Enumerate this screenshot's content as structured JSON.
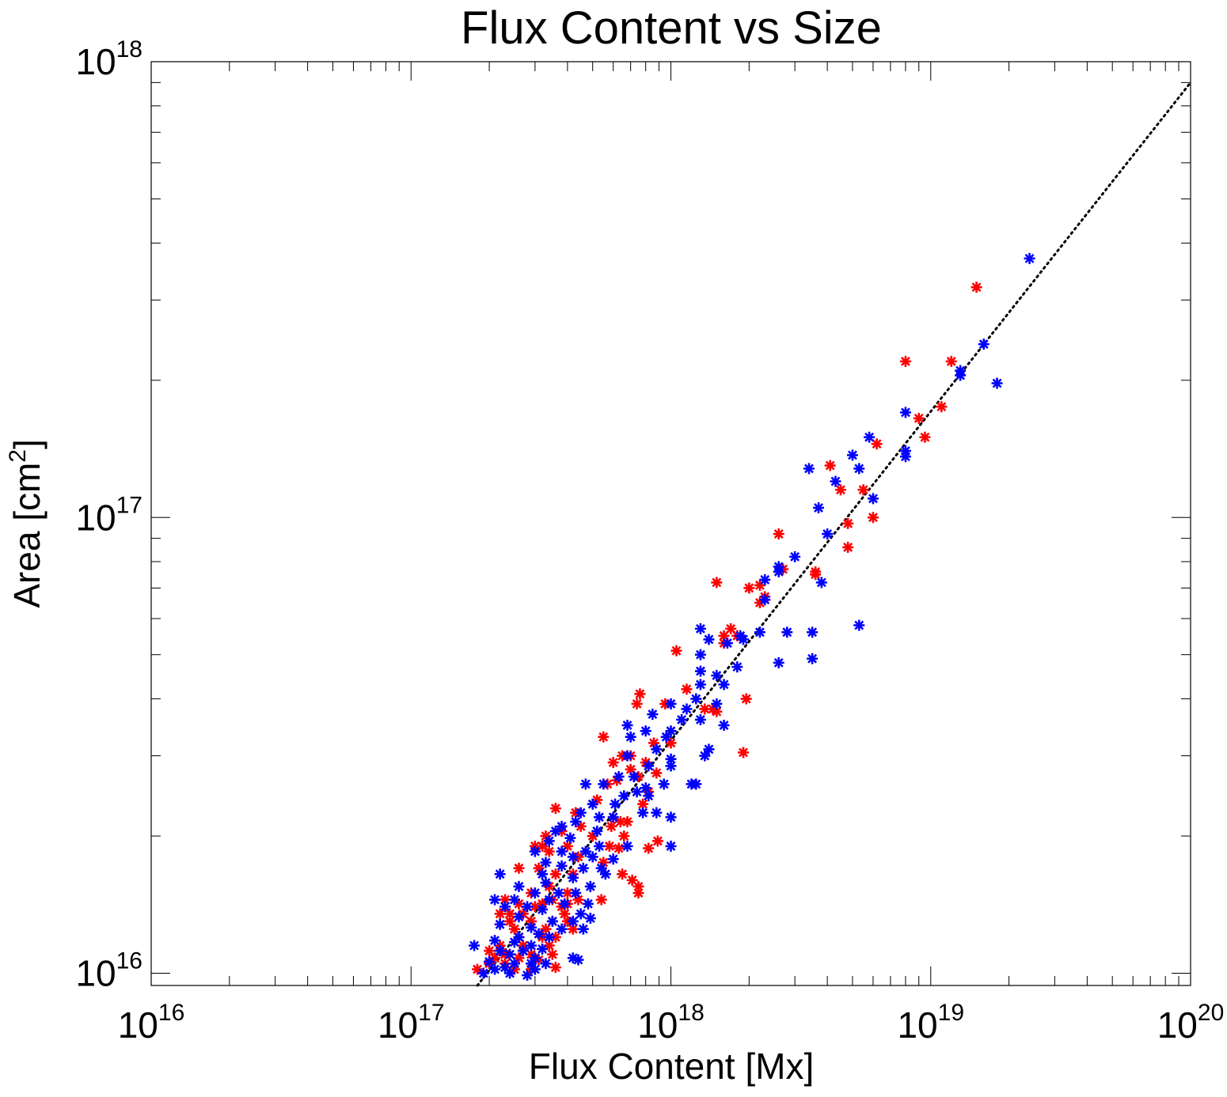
{
  "chart_data": {
    "type": "scatter",
    "title": "Flux Content vs Size",
    "xlabel": "Flux Content [Mx]",
    "ylabel_main": "Area [cm",
    "ylabel_sup": "2",
    "ylabel_tail": "]",
    "xscale": "log",
    "yscale": "log",
    "xlim": [
      1e+16,
      1e+20
    ],
    "ylim": [
      9400000000000000.0,
      1e+18
    ],
    "grid": false,
    "x_tick_labels": [
      {
        "base": "10",
        "exp": "16",
        "value": 1e+16
      },
      {
        "base": "10",
        "exp": "17",
        "value": 1e+17
      },
      {
        "base": "10",
        "exp": "18",
        "value": 1e+18
      },
      {
        "base": "10",
        "exp": "19",
        "value": 1e+19
      },
      {
        "base": "10",
        "exp": "20",
        "value": 1e+20
      }
    ],
    "y_tick_labels": [
      {
        "base": "10",
        "exp": "16",
        "value": 1e+16
      },
      {
        "base": "10",
        "exp": "17",
        "value": 1e+17
      },
      {
        "base": "10",
        "exp": "18",
        "value": 1e+18
      }
    ],
    "fit_line": {
      "style": "dotted",
      "color": "#000000",
      "points": [
        [
          1.8e+17,
          9400000000000000.0
        ],
        [
          1e+20,
          9e+17
        ]
      ]
    },
    "series": [
      {
        "color": "#ff0000",
        "marker": "asterisk",
        "points": [
          [
            1.5e+19,
            3.2e+17
          ],
          [
            8e+18,
            2.2e+17
          ],
          [
            1.2e+19,
            2.2e+17
          ],
          [
            1.1e+19,
            1.75e+17
          ],
          [
            9e+18,
            1.65e+17
          ],
          [
            9.5e+18,
            1.5e+17
          ],
          [
            6.2e+18,
            1.45e+17
          ],
          [
            4.1e+18,
            1.3e+17
          ],
          [
            5.5e+18,
            1.15e+17
          ],
          [
            4.5e+18,
            1.15e+17
          ],
          [
            6e+18,
            1e+17
          ],
          [
            4.8e+18,
            9.7e+16
          ],
          [
            2.6e+18,
            9.2e+16
          ],
          [
            4.8e+18,
            8.6e+16
          ],
          [
            3.6e+18,
            7.6e+16
          ],
          [
            2.7e+18,
            7.7e+16
          ],
          [
            3.6e+18,
            7.5e+16
          ],
          [
            2.2e+18,
            7.1e+16
          ],
          [
            1.5e+18,
            7.2e+16
          ],
          [
            2e+18,
            7e+16
          ],
          [
            2.3e+18,
            6.7e+16
          ],
          [
            2.2e+18,
            6.5e+16
          ],
          [
            1.7e+18,
            5.7e+16
          ],
          [
            1.6e+18,
            5.5e+16
          ],
          [
            1.6e+18,
            5.3e+16
          ],
          [
            1.8e+18,
            5.5e+16
          ],
          [
            1.05e+18,
            5.1e+16
          ],
          [
            1.15e+18,
            4.2e+16
          ],
          [
            1.95e+18,
            4e+16
          ],
          [
            1.45e+18,
            3.8e+16
          ],
          [
            1.5e+18,
            3.75e+16
          ],
          [
            1.35e+18,
            3.8e+16
          ],
          [
            1.9e+18,
            3.05e+16
          ],
          [
            7.6e+17,
            4.1e+16
          ],
          [
            7.4e+17,
            3.9e+16
          ],
          [
            9.5e+17,
            3.9e+16
          ],
          [
            1e+18,
            3.2e+16
          ],
          [
            5.5e+17,
            3.3e+16
          ],
          [
            6.5e+17,
            3e+16
          ],
          [
            7e+17,
            3e+16
          ],
          [
            8.6e+17,
            3.2e+16
          ],
          [
            8e+17,
            2.9e+16
          ],
          [
            6e+17,
            2.9e+16
          ],
          [
            7e+17,
            2.8e+16
          ],
          [
            8.8e+17,
            2.75e+16
          ],
          [
            7.5e+17,
            2.7e+16
          ],
          [
            6.2e+17,
            2.65e+16
          ],
          [
            5.7e+17,
            2.6e+16
          ],
          [
            8.2e+17,
            2.5e+16
          ],
          [
            7.8e+17,
            2.35e+16
          ],
          [
            3.6e+17,
            2.3e+16
          ],
          [
            4.3e+17,
            2.25e+16
          ],
          [
            5.2e+17,
            2.4e+16
          ],
          [
            6.4e+17,
            2.15e+16
          ],
          [
            6.8e+17,
            2.15e+16
          ],
          [
            5.9e+17,
            2.1e+16
          ],
          [
            4.5e+17,
            2.1e+16
          ],
          [
            3.8e+17,
            2.05e+16
          ],
          [
            3.3e+17,
            2e+16
          ],
          [
            5e+17,
            2e+16
          ],
          [
            6.6e+17,
            2e+16
          ],
          [
            8.9e+17,
            1.95e+16
          ],
          [
            3e+17,
            1.9e+16
          ],
          [
            3.2e+17,
            1.9e+16
          ],
          [
            4e+17,
            1.9e+16
          ],
          [
            5.8e+17,
            1.9e+16
          ],
          [
            6.3e+17,
            1.88e+16
          ],
          [
            8.2e+17,
            1.88e+16
          ],
          [
            3.4e+17,
            1.85e+16
          ],
          [
            4.4e+17,
            1.8e+16
          ],
          [
            5.5e+17,
            1.75e+16
          ],
          [
            2.6e+17,
            1.7e+16
          ],
          [
            3.1e+17,
            1.7e+16
          ],
          [
            3.6e+17,
            1.65e+16
          ],
          [
            4.2e+17,
            1.65e+16
          ],
          [
            6.5e+17,
            1.65e+16
          ],
          [
            7.1e+17,
            1.6e+16
          ],
          [
            3.4e+17,
            1.55e+16
          ],
          [
            4e+17,
            1.5e+16
          ],
          [
            7.5e+17,
            1.55e+16
          ],
          [
            2.9e+17,
            1.5e+16
          ],
          [
            3.5e+17,
            1.45e+16
          ],
          [
            4.4e+17,
            1.45e+16
          ],
          [
            5.4e+17,
            1.45e+16
          ],
          [
            7.5e+17,
            1.5e+16
          ],
          [
            2.3e+17,
            1.45e+16
          ],
          [
            2.6e+17,
            1.42e+16
          ],
          [
            3e+17,
            1.4e+16
          ],
          [
            3.2e+17,
            1.42e+16
          ],
          [
            3.8e+17,
            1.4e+16
          ],
          [
            4e+17,
            1.42e+16
          ],
          [
            2.2e+17,
            1.35e+16
          ],
          [
            2.7e+17,
            1.35e+16
          ],
          [
            2.4e+17,
            1.35e+16
          ],
          [
            3.9e+17,
            1.35e+16
          ],
          [
            2.4e+17,
            1.3e+16
          ],
          [
            2.9e+17,
            1.3e+16
          ],
          [
            3.5e+17,
            1.3e+16
          ],
          [
            4e+17,
            1.3e+16
          ],
          [
            2.5e+17,
            1.25e+16
          ],
          [
            3.3e+17,
            1.25e+16
          ],
          [
            4.2e+17,
            1.25e+16
          ],
          [
            2.6e+17,
            1.2e+16
          ],
          [
            3.2e+17,
            1.2e+16
          ],
          [
            3.6e+17,
            1.2e+16
          ],
          [
            2.2e+17,
            1.15e+16
          ],
          [
            2.7e+17,
            1.15e+16
          ],
          [
            3.4e+17,
            1.15e+16
          ],
          [
            2e+17,
            1.12e+16
          ],
          [
            2.3e+17,
            1.1e+16
          ],
          [
            2.9e+17,
            1.1e+16
          ],
          [
            3.5e+17,
            1.1e+16
          ],
          [
            2.1e+17,
            1.08e+16
          ],
          [
            2.6e+17,
            1.08e+16
          ],
          [
            3.1e+17,
            1.07e+16
          ],
          [
            2e+17,
            1.05e+16
          ],
          [
            2.3e+17,
            1.05e+16
          ],
          [
            3.6e+17,
            1.03e+16
          ],
          [
            1.8e+17,
            1.02e+16
          ],
          [
            2.5e+17,
            1.02e+16
          ],
          [
            2.9e+17,
            1.02e+16
          ]
        ]
      },
      {
        "color": "#0000ff",
        "marker": "asterisk",
        "points": [
          [
            2.4e+19,
            3.7e+17
          ],
          [
            1.6e+19,
            2.4e+17
          ],
          [
            1.3e+19,
            2.05e+17
          ],
          [
            1.3e+19,
            2.1e+17
          ],
          [
            1.8e+19,
            1.97e+17
          ],
          [
            8e+18,
            1.7e+17
          ],
          [
            5.8e+18,
            1.5e+17
          ],
          [
            8e+18,
            1.4e+17
          ],
          [
            8e+18,
            1.36e+17
          ],
          [
            5e+18,
            1.37e+17
          ],
          [
            3.4e+18,
            1.28e+17
          ],
          [
            5.3e+18,
            1.28e+17
          ],
          [
            4.3e+18,
            1.2e+17
          ],
          [
            6e+18,
            1.1e+17
          ],
          [
            3.7e+18,
            1.05e+17
          ],
          [
            4e+18,
            9.2e+16
          ],
          [
            3e+18,
            8.2e+16
          ],
          [
            2.6e+18,
            7.8e+16
          ],
          [
            2.6e+18,
            7.6e+16
          ],
          [
            2.3e+18,
            7.3e+16
          ],
          [
            3.8e+18,
            7.2e+16
          ],
          [
            2.3e+18,
            6.6e+16
          ],
          [
            5.3e+18,
            5.8e+16
          ],
          [
            2.2e+18,
            5.6e+16
          ],
          [
            2.8e+18,
            5.6e+16
          ],
          [
            3.5e+18,
            5.6e+16
          ],
          [
            1.85e+18,
            5.5e+16
          ],
          [
            1.9e+18,
            5.4e+16
          ],
          [
            1.65e+18,
            5.3e+16
          ],
          [
            3.5e+18,
            4.9e+16
          ],
          [
            2.6e+18,
            4.8e+16
          ],
          [
            1.3e+18,
            5.7e+16
          ],
          [
            1.4e+18,
            5.4e+16
          ],
          [
            1.3e+18,
            5e+16
          ],
          [
            1.3e+18,
            4.6e+16
          ],
          [
            1.5e+18,
            4.5e+16
          ],
          [
            1.6e+18,
            4.3e+16
          ],
          [
            1.8e+18,
            4.7e+16
          ],
          [
            1.3e+18,
            4.3e+16
          ],
          [
            1.25e+18,
            4e+16
          ],
          [
            1.5e+18,
            3.9e+16
          ],
          [
            1.6e+18,
            3.5e+16
          ],
          [
            1.15e+18,
            3.8e+16
          ],
          [
            1e+18,
            3.9e+16
          ],
          [
            8.5e+17,
            3.7e+16
          ],
          [
            1.1e+18,
            3.6e+16
          ],
          [
            1.3e+18,
            3.6e+16
          ],
          [
            1e+18,
            3.4e+16
          ],
          [
            6.8e+17,
            3.5e+16
          ],
          [
            7e+17,
            3.3e+16
          ],
          [
            8e+17,
            3.4e+16
          ],
          [
            9.6e+17,
            3.3e+16
          ],
          [
            1.4e+18,
            3.1e+16
          ],
          [
            1.35e+18,
            3e+16
          ],
          [
            1e+18,
            2.95e+16
          ],
          [
            8.8e+17,
            3.1e+16
          ],
          [
            6.8e+17,
            3e+16
          ],
          [
            8.2e+17,
            2.85e+16
          ],
          [
            1e+18,
            2.85e+16
          ],
          [
            6.3e+17,
            2.7e+16
          ],
          [
            7.2e+17,
            2.7e+16
          ],
          [
            1.2e+18,
            2.6e+16
          ],
          [
            1.25e+18,
            2.6e+16
          ],
          [
            9.4e+17,
            2.6e+16
          ],
          [
            8e+17,
            2.55e+16
          ],
          [
            7.4e+17,
            2.5e+16
          ],
          [
            6.6e+17,
            2.45e+16
          ],
          [
            5.5e+17,
            2.6e+16
          ],
          [
            4.7e+17,
            2.6e+16
          ],
          [
            8.2e+17,
            2.45e+16
          ],
          [
            6.1e+17,
            2.35e+16
          ],
          [
            5e+17,
            2.35e+16
          ],
          [
            4.5e+17,
            2.25e+16
          ],
          [
            7.8e+17,
            2.25e+16
          ],
          [
            8.8e+17,
            2.25e+16
          ],
          [
            1e+18,
            2.2e+16
          ],
          [
            6e+17,
            2.2e+16
          ],
          [
            5.3e+17,
            2.2e+16
          ],
          [
            4.3e+17,
            2.15e+16
          ],
          [
            3.8e+17,
            2.1e+16
          ],
          [
            3.6e+17,
            2.05e+16
          ],
          [
            5.2e+17,
            2.05e+16
          ],
          [
            4.1e+17,
            1.98e+16
          ],
          [
            3.4e+17,
            1.95e+16
          ],
          [
            5.3e+17,
            1.9e+16
          ],
          [
            4.7e+17,
            1.85e+16
          ],
          [
            6.8e+17,
            1.9e+16
          ],
          [
            1e+18,
            1.9e+16
          ],
          [
            3e+17,
            1.85e+16
          ],
          [
            3.8e+17,
            1.85e+16
          ],
          [
            4.2e+17,
            1.8e+16
          ],
          [
            5e+17,
            1.8e+16
          ],
          [
            6e+17,
            1.78e+16
          ],
          [
            3.3e+17,
            1.75e+16
          ],
          [
            3.8e+17,
            1.72e+16
          ],
          [
            4.6e+17,
            1.7e+16
          ],
          [
            5.4e+17,
            1.7e+16
          ],
          [
            2.2e+17,
            1.65e+16
          ],
          [
            3.2e+17,
            1.65e+16
          ],
          [
            4.2e+17,
            1.62e+16
          ],
          [
            5.6e+17,
            1.65e+16
          ],
          [
            2.6e+17,
            1.55e+16
          ],
          [
            3.3e+17,
            1.58e+16
          ],
          [
            4.9e+17,
            1.55e+16
          ],
          [
            3e+17,
            1.5e+16
          ],
          [
            3.7e+17,
            1.5e+16
          ],
          [
            4.3e+17,
            1.5e+16
          ],
          [
            2.1e+17,
            1.45e+16
          ],
          [
            2.5e+17,
            1.45e+16
          ],
          [
            3.4e+17,
            1.45e+16
          ],
          [
            3.9e+17,
            1.42e+16
          ],
          [
            4.8e+17,
            1.42e+16
          ],
          [
            2.3e+17,
            1.4e+16
          ],
          [
            2.8e+17,
            1.4e+16
          ],
          [
            3.2e+17,
            1.38e+16
          ],
          [
            4.5e+17,
            1.35e+16
          ],
          [
            2.6e+17,
            1.33e+16
          ],
          [
            3.5e+17,
            1.3e+16
          ],
          [
            4.2e+17,
            1.3e+16
          ],
          [
            4.9e+17,
            1.32e+16
          ],
          [
            2.2e+17,
            1.28e+16
          ],
          [
            2.9e+17,
            1.26e+16
          ],
          [
            3.1e+17,
            1.22e+16
          ],
          [
            3.8e+17,
            1.25e+16
          ],
          [
            4.6e+17,
            1.25e+16
          ],
          [
            2.6e+17,
            1.2e+16
          ],
          [
            3.4e+17,
            1.2e+16
          ],
          [
            2.1e+17,
            1.18e+16
          ],
          [
            2.5e+17,
            1.17e+16
          ],
          [
            2.9e+17,
            1.15e+16
          ],
          [
            1.75e+17,
            1.15e+16
          ],
          [
            3.2e+17,
            1.13e+16
          ],
          [
            2.2e+17,
            1.12e+16
          ],
          [
            2.7e+17,
            1.12e+16
          ],
          [
            2.4e+17,
            1.1e+16
          ],
          [
            3e+17,
            1.08e+16
          ],
          [
            4.2e+17,
            1.08e+16
          ],
          [
            4.4e+17,
            1.07e+16
          ],
          [
            2e+17,
            1.06e+16
          ],
          [
            2.5e+17,
            1.05e+16
          ],
          [
            2.9e+17,
            1.05e+16
          ],
          [
            3.3e+17,
            1.05e+16
          ],
          [
            2.3e+17,
            1.03e+16
          ],
          [
            2.1e+17,
            1.02e+16
          ],
          [
            3e+17,
            1.02e+16
          ],
          [
            1.9e+17,
            1e+16
          ],
          [
            2.4e+17,
            1e+16
          ],
          [
            2.8e+17,
            9900000000000000.0
          ]
        ]
      }
    ]
  }
}
